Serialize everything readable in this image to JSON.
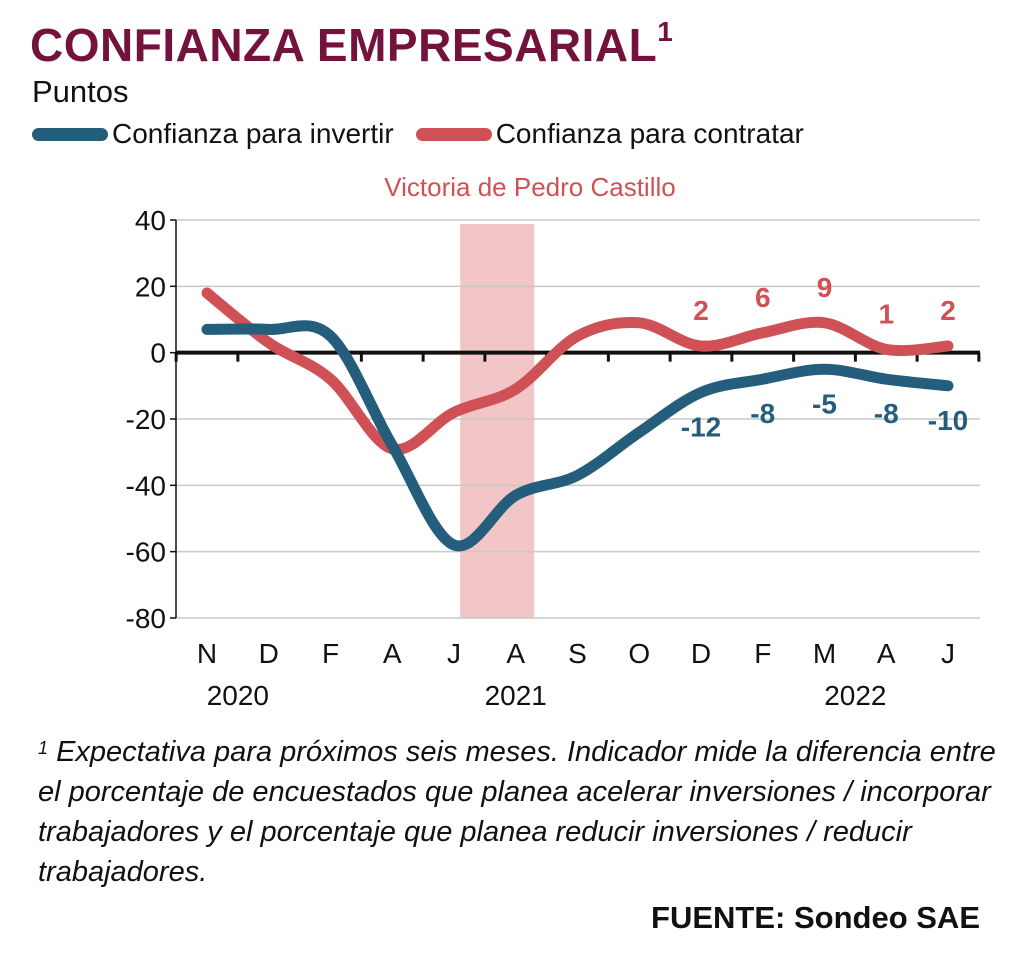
{
  "header": {
    "title": "CONFIANZA EMPRESARIAL",
    "title_sup": "1",
    "units": "Puntos"
  },
  "colors": {
    "title": "#74123e",
    "invertir": "#255d7c",
    "contratar": "#d05155",
    "shade": "#f2c6c7"
  },
  "chart_data": {
    "type": "line",
    "x": [
      "N",
      "D",
      "F",
      "A",
      "J",
      "A",
      "S",
      "O",
      "D",
      "F",
      "M",
      "A",
      "J"
    ],
    "year_labels": [
      {
        "label": "2020",
        "at_index": 0.5
      },
      {
        "label": "2021",
        "at_index": 5
      },
      {
        "label": "2022",
        "at_index": 10.5
      }
    ],
    "ylim": [
      -80,
      40
    ],
    "yticks": [
      40,
      20,
      0,
      -20,
      -40,
      -60,
      -80
    ],
    "grid": true,
    "legend_position": "top",
    "shaded_region": {
      "label": "Victoria de Pedro Castillo",
      "from_index": 4.1,
      "to_index": 5.3
    },
    "series": [
      {
        "name": "Confianza para invertir",
        "color": "#255d7c",
        "values": [
          7,
          7,
          5,
          -28,
          -58,
          -43,
          -37,
          -24,
          -12,
          -8,
          -5,
          -8,
          -10
        ],
        "labels": [
          null,
          null,
          null,
          null,
          null,
          null,
          null,
          null,
          "-12",
          "-8",
          "-5",
          "-8",
          "-10"
        ]
      },
      {
        "name": "Confianza para contratar",
        "color": "#d05155",
        "values": [
          18,
          3,
          -8,
          -29,
          -18,
          -11,
          5,
          9,
          2,
          6,
          9,
          1,
          2
        ],
        "labels": [
          null,
          null,
          null,
          null,
          null,
          null,
          null,
          null,
          "2",
          "6",
          "9",
          "1",
          "2"
        ]
      }
    ]
  },
  "footnote": {
    "sup": "1",
    "text": " Expectativa para próximos seis meses. Indicador mide la diferencia entre el porcentaje de encuestados que planea acelerar inversiones / incorporar trabajadores y el porcentaje que planea reducir inversiones / reducir trabajadores."
  },
  "source": "FUENTE: Sondeo SAE"
}
